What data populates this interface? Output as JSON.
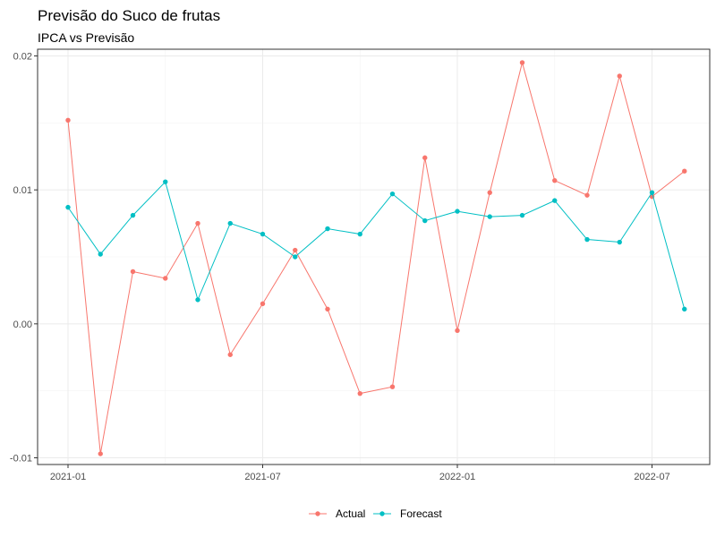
{
  "chart_data": {
    "type": "line",
    "title": "Previsão do Suco de frutas",
    "subtitle": "IPCA vs Previsão",
    "xlabel": "",
    "ylabel": "",
    "x": [
      "2021-01",
      "2021-02",
      "2021-03",
      "2021-04",
      "2021-05",
      "2021-06",
      "2021-07",
      "2021-08",
      "2021-09",
      "2021-10",
      "2021-11",
      "2021-12",
      "2022-01",
      "2022-02",
      "2022-03",
      "2022-04",
      "2022-05",
      "2022-06",
      "2022-07",
      "2022-08"
    ],
    "x_ticks": [
      "2021-01",
      "2021-07",
      "2022-01",
      "2022-07"
    ],
    "y_ticks": [
      -0.01,
      0.0,
      0.01,
      0.02
    ],
    "y_tick_labels": [
      "-0.01",
      "0.00",
      "0.01",
      "0.02"
    ],
    "ylim": [
      -0.0105,
      0.0205
    ],
    "grid": true,
    "legend_position": "bottom",
    "series": [
      {
        "name": "Actual",
        "color": "#F8766D",
        "values": [
          0.0152,
          -0.0097,
          0.0039,
          0.0034,
          0.0075,
          -0.0023,
          0.0015,
          0.0055,
          0.0011,
          -0.0052,
          -0.0047,
          0.0124,
          -0.0005,
          0.0098,
          0.0195,
          0.0107,
          0.0096,
          0.0185,
          0.0095,
          0.0114
        ]
      },
      {
        "name": "Forecast",
        "color": "#00BFC4",
        "values": [
          0.0087,
          0.0052,
          0.0081,
          0.0106,
          0.0018,
          0.0075,
          0.0067,
          0.005,
          0.0071,
          0.0067,
          0.0097,
          0.0077,
          0.0084,
          0.008,
          0.0081,
          0.0092,
          0.0063,
          0.0061,
          0.0098,
          0.0011
        ]
      }
    ]
  }
}
